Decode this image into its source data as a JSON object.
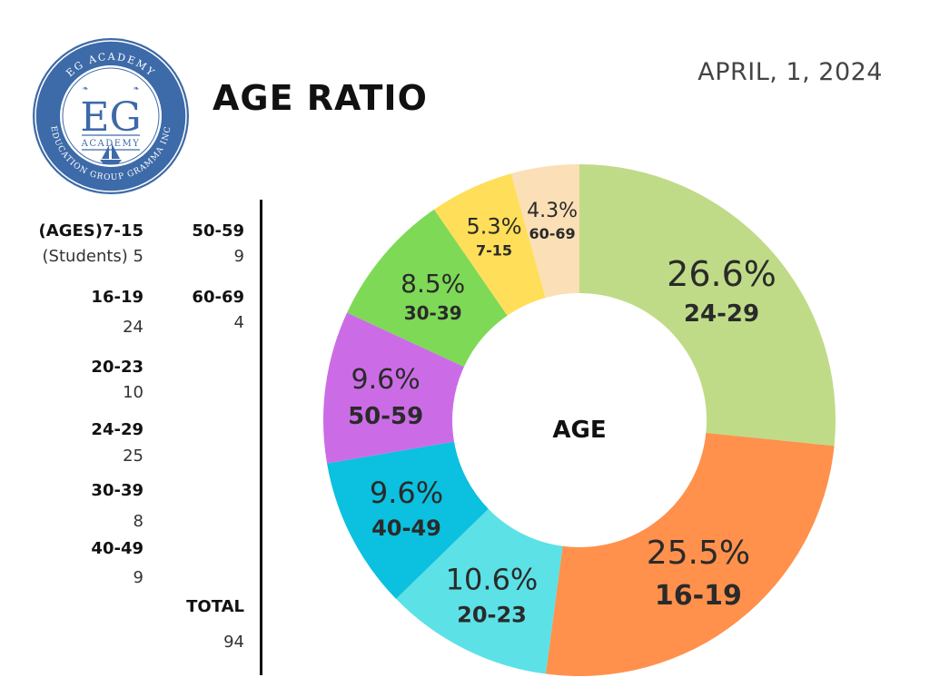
{
  "logo": {
    "ring_text_top": "EG ACADEMY",
    "ring_text_bottom": "EDUCATION GROUP GRAMMA INC",
    "monogram": "EG",
    "sub": "ACADEMY",
    "color": "#3d6aa8"
  },
  "title": "AGE RATIO",
  "date": "APRIL, 1, 2024",
  "table": {
    "left": [
      {
        "label": "(AGES)7-15",
        "value": "(Students) 5"
      },
      {
        "label": "16-19",
        "value": "24"
      },
      {
        "label": "20-23",
        "value": "10"
      },
      {
        "label": "24-29",
        "value": "25"
      },
      {
        "label": "30-39",
        "value": "8"
      },
      {
        "label": "40-49",
        "value": "9"
      }
    ],
    "right": [
      {
        "label": "50-59",
        "value": "9"
      },
      {
        "label": "60-69",
        "value": "4"
      }
    ],
    "total": {
      "label": "TOTAL",
      "value": "94"
    }
  },
  "chart_data": {
    "type": "pie",
    "variant": "donut",
    "center_label": "AGE",
    "start": "top, clockwise",
    "slices": [
      {
        "label": "24-29",
        "value": 26.6,
        "pct_label": "26.6%",
        "color": "#bfdb87"
      },
      {
        "label": "16-19",
        "value": 25.5,
        "pct_label": "25.5%",
        "color": "#ff914d"
      },
      {
        "label": "20-23",
        "value": 10.6,
        "pct_label": "10.6%",
        "color": "#5ce1e6"
      },
      {
        "label": "40-49",
        "value": 9.6,
        "pct_label": "9.6%",
        "color": "#0cc0df"
      },
      {
        "label": "50-59",
        "value": 9.6,
        "pct_label": "9.6%",
        "color": "#cb6ce6"
      },
      {
        "label": "30-39",
        "value": 8.5,
        "pct_label": "8.5%",
        "color": "#7ed957"
      },
      {
        "label": "7-15",
        "value": 5.3,
        "pct_label": "5.3%",
        "color": "#ffde59"
      },
      {
        "label": "60-69",
        "value": 4.3,
        "pct_label": "4.3%",
        "color": "#fbdfb6"
      }
    ]
  }
}
